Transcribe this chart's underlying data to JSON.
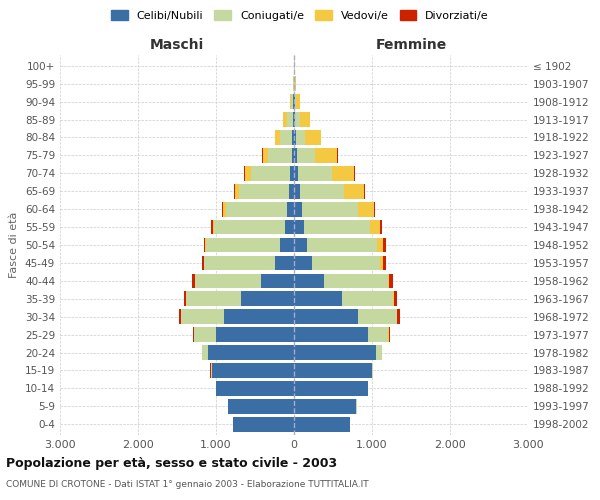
{
  "age_groups": [
    "0-4",
    "5-9",
    "10-14",
    "15-19",
    "20-24",
    "25-29",
    "30-34",
    "35-39",
    "40-44",
    "45-49",
    "50-54",
    "55-59",
    "60-64",
    "65-69",
    "70-74",
    "75-79",
    "80-84",
    "85-89",
    "90-94",
    "95-99",
    "100+"
  ],
  "birth_years": [
    "1998-2002",
    "1993-1997",
    "1988-1992",
    "1983-1987",
    "1978-1982",
    "1973-1977",
    "1968-1972",
    "1963-1967",
    "1958-1962",
    "1953-1957",
    "1948-1952",
    "1943-1947",
    "1938-1942",
    "1933-1937",
    "1928-1932",
    "1923-1927",
    "1918-1922",
    "1913-1917",
    "1908-1912",
    "1903-1907",
    "≤ 1902"
  ],
  "male": {
    "celibi": [
      780,
      850,
      1000,
      1050,
      1100,
      1000,
      900,
      680,
      420,
      250,
      180,
      120,
      90,
      70,
      50,
      30,
      20,
      15,
      8,
      3,
      2
    ],
    "coniugati": [
      2,
      2,
      5,
      20,
      80,
      280,
      550,
      700,
      850,
      900,
      950,
      900,
      780,
      630,
      500,
      300,
      160,
      80,
      25,
      8,
      3
    ],
    "vedovi": [
      0,
      0,
      0,
      0,
      0,
      1,
      1,
      2,
      3,
      5,
      10,
      20,
      40,
      60,
      80,
      70,
      60,
      40,
      15,
      5,
      1
    ],
    "divorziati": [
      0,
      0,
      0,
      1,
      3,
      10,
      20,
      30,
      30,
      25,
      20,
      20,
      15,
      8,
      5,
      5,
      3,
      2,
      0,
      0,
      0
    ]
  },
  "female": {
    "nubili": [
      720,
      800,
      950,
      1000,
      1050,
      950,
      820,
      620,
      380,
      230,
      170,
      130,
      100,
      75,
      55,
      35,
      22,
      18,
      10,
      4,
      2
    ],
    "coniugate": [
      1,
      2,
      3,
      15,
      75,
      260,
      500,
      650,
      820,
      870,
      900,
      850,
      720,
      560,
      430,
      240,
      120,
      60,
      20,
      6,
      2
    ],
    "vedove": [
      0,
      0,
      0,
      0,
      1,
      3,
      5,
      10,
      20,
      40,
      70,
      120,
      200,
      260,
      290,
      280,
      200,
      130,
      50,
      15,
      3
    ],
    "divorziate": [
      0,
      0,
      0,
      2,
      5,
      15,
      30,
      40,
      45,
      40,
      35,
      30,
      20,
      12,
      8,
      6,
      4,
      2,
      1,
      0,
      0
    ]
  },
  "colors": {
    "celibi": "#3a6ea5",
    "coniugati": "#c5d8a0",
    "vedovi": "#f5c842",
    "divorziati": "#cc2200"
  },
  "xlim": 3000,
  "title": "Popolazione per età, sesso e stato civile - 2003",
  "subtitle": "COMUNE DI CROTONE - Dati ISTAT 1° gennaio 2003 - Elaborazione TUTTITALIA.IT",
  "xlabel_left": "Maschi",
  "xlabel_right": "Femmine",
  "ylabel_left": "Fasce di età",
  "legend_labels": [
    "Celibi/Nubili",
    "Coniugati/e",
    "Vedovi/e",
    "Divorziati/e"
  ],
  "xticks": [
    -3000,
    -2000,
    -1000,
    0,
    1000,
    2000,
    3000
  ],
  "xticklabels": [
    "3.000",
    "2.000",
    "1.000",
    "0",
    "1.000",
    "2.000",
    "3.000"
  ]
}
